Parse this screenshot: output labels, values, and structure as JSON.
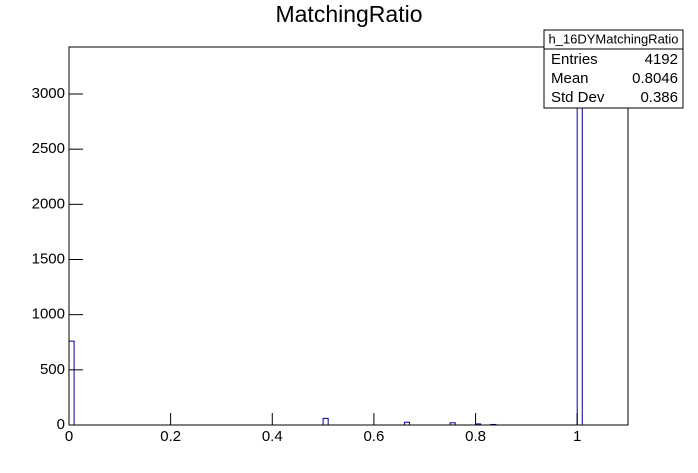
{
  "chart_data": {
    "type": "histogram",
    "title": "MatchingRatio",
    "bins": [
      0,
      0.01,
      0.5,
      0.51,
      0.66,
      0.67,
      0.75,
      0.76,
      0.8,
      0.81,
      0.83,
      0.84,
      1.0,
      1.01,
      1.1
    ],
    "values": [
      760,
      0,
      60,
      0,
      25,
      0,
      20,
      0,
      10,
      0,
      5,
      0,
      3312,
      0
    ],
    "color": "#000099",
    "xlim": [
      0,
      1.1
    ],
    "ylim": [
      0,
      3426
    ],
    "xticks": [
      0,
      0.2,
      0.4,
      0.6,
      0.8,
      1
    ],
    "yticks": [
      0,
      500,
      1000,
      1500,
      2000,
      2500,
      3000
    ],
    "stats": {
      "name": "h_16DYMatchingRatio",
      "rows": [
        [
          "Entries",
          "4192"
        ],
        [
          "Mean",
          "0.8046"
        ],
        [
          "Std Dev",
          "0.386"
        ]
      ]
    }
  }
}
